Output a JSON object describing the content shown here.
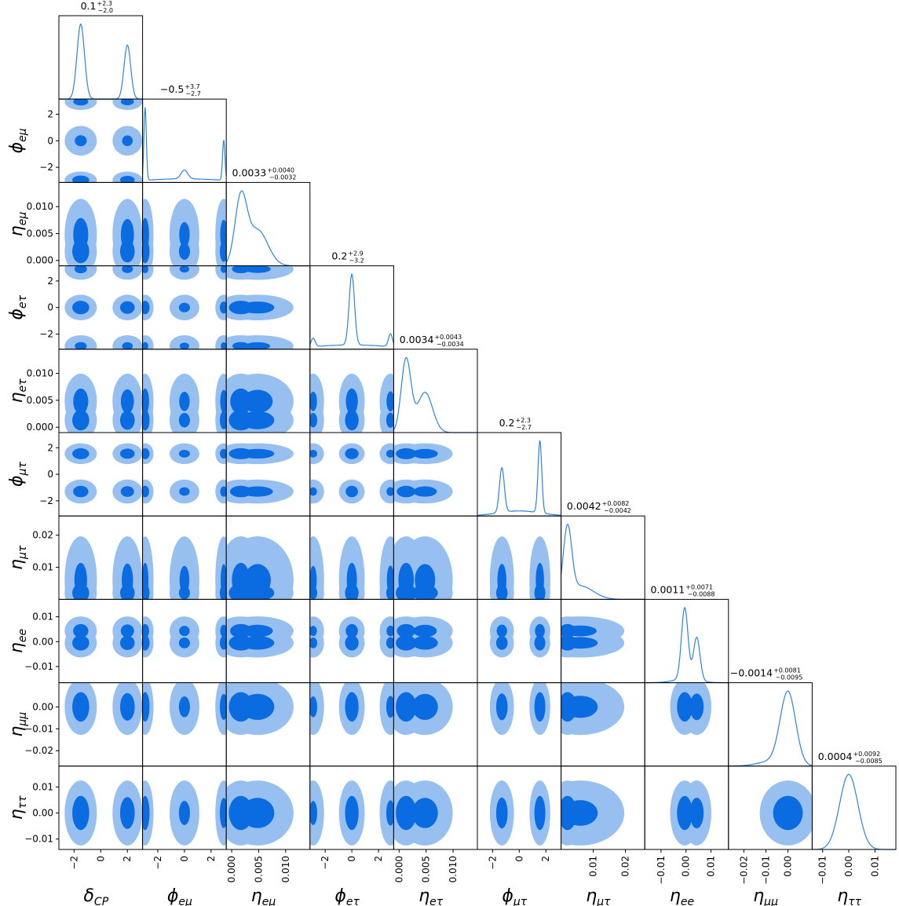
{
  "colors": {
    "inner": "#0a6ce0",
    "outer": "#97c0f0",
    "line": "#2b84e0",
    "axis": "#000000"
  },
  "chart_data": {
    "type": "corner",
    "params": [
      {
        "key": "dCP",
        "label_base": "δ",
        "label_sub": "CP",
        "range": [
          -3.14,
          3.14
        ],
        "ticks": [
          -2,
          0,
          2
        ],
        "tick_labels": [
          "−2",
          "0",
          "2"
        ],
        "summary": {
          "value": "0.1",
          "plus": "+2.3",
          "minus": "−2.0"
        },
        "peaks": [
          {
            "mu": -1.5,
            "s": 0.28,
            "a": 1.0
          },
          {
            "mu": 2.0,
            "s": 0.25,
            "a": 0.72
          }
        ]
      },
      {
        "key": "pem",
        "label_base": "ϕ",
        "label_sub": "eμ",
        "range": [
          -3.14,
          3.14
        ],
        "ticks": [
          -2,
          0,
          2
        ],
        "tick_labels": [
          "−2",
          "0",
          "2"
        ],
        "summary": {
          "value": "−0.5",
          "plus": "+3.7",
          "minus": "−2.7"
        },
        "peaks": [
          {
            "mu": -2.95,
            "s": 0.09,
            "a": 1.0
          },
          {
            "mu": 0.0,
            "s": 0.25,
            "a": 0.12
          },
          {
            "mu": 2.95,
            "s": 0.09,
            "a": 0.55
          },
          {
            "mu": 0.0,
            "s": 3.0,
            "a": 0.05
          }
        ]
      },
      {
        "key": "nem",
        "label_base": "η",
        "label_sub": "eμ",
        "range": [
          -0.001,
          0.0145
        ],
        "ticks": [
          0,
          0.005,
          0.01
        ],
        "tick_labels": [
          "0.000",
          "0.005",
          "0.010"
        ],
        "summary": {
          "value": "0.0033",
          "plus": "+0.0040",
          "minus": "−0.0032"
        },
        "peaks": [
          {
            "mu": 0.0017,
            "s": 0.0011,
            "a": 1.0
          },
          {
            "mu": 0.0048,
            "s": 0.0019,
            "a": 0.55
          }
        ]
      },
      {
        "key": "pet",
        "label_base": "ϕ",
        "label_sub": "eτ",
        "range": [
          -3.14,
          3.14
        ],
        "ticks": [
          -2,
          0,
          2
        ],
        "tick_labels": [
          "−2",
          "0",
          "2"
        ],
        "summary": {
          "value": "0.2",
          "plus": "+2.9",
          "minus": "−3.2"
        },
        "peaks": [
          {
            "mu": 0.0,
            "s": 0.2,
            "a": 1.0
          },
          {
            "mu": -2.9,
            "s": 0.15,
            "a": 0.12
          },
          {
            "mu": 2.9,
            "s": 0.15,
            "a": 0.18
          },
          {
            "mu": 0.0,
            "s": 3.0,
            "a": 0.06
          }
        ]
      },
      {
        "key": "net",
        "label_base": "η",
        "label_sub": "eτ",
        "range": [
          -0.001,
          0.0145
        ],
        "ticks": [
          0,
          0.005,
          0.01
        ],
        "tick_labels": [
          "0.000",
          "0.005",
          "0.010"
        ],
        "summary": {
          "value": "0.0034",
          "plus": "+0.0043",
          "minus": "−0.0034"
        },
        "peaks": [
          {
            "mu": 0.0013,
            "s": 0.0009,
            "a": 1.0
          },
          {
            "mu": 0.0048,
            "s": 0.0014,
            "a": 0.55
          }
        ]
      },
      {
        "key": "pmt",
        "label_base": "ϕ",
        "label_sub": "μτ",
        "range": [
          -3.14,
          3.14
        ],
        "ticks": [
          -2,
          0,
          2
        ],
        "tick_labels": [
          "−2",
          "0",
          "2"
        ],
        "summary": {
          "value": "0.2",
          "plus": "+2.3",
          "minus": "−2.7"
        },
        "peaks": [
          {
            "mu": -1.3,
            "s": 0.18,
            "a": 0.62
          },
          {
            "mu": 1.55,
            "s": 0.14,
            "a": 1.0
          },
          {
            "mu": 0.0,
            "s": 1.6,
            "a": 0.07
          }
        ]
      },
      {
        "key": "nmt",
        "label_base": "η",
        "label_sub": "μτ",
        "range": [
          0,
          0.026
        ],
        "ticks": [
          0.01,
          0.02
        ],
        "tick_labels": [
          "0.01",
          "0.02"
        ],
        "summary": {
          "value": "0.0042",
          "plus": "+0.0082",
          "minus": "−0.0042"
        },
        "peaks": [
          {
            "mu": 0.002,
            "s": 0.0013,
            "a": 1.0
          },
          {
            "mu": 0.006,
            "s": 0.004,
            "a": 0.2
          }
        ]
      },
      {
        "key": "nee",
        "label_base": "η",
        "label_sub": "ee",
        "range": [
          -0.0165,
          0.017
        ],
        "ticks": [
          -0.01,
          0,
          0.01
        ],
        "tick_labels": [
          "−0.01",
          "0.00",
          "0.01"
        ],
        "summary": {
          "value": "0.0011",
          "plus": "+0.0071",
          "minus": "−0.0088"
        },
        "peaks": [
          {
            "mu": -0.0005,
            "s": 0.0013,
            "a": 1.0
          },
          {
            "mu": 0.0043,
            "s": 0.0013,
            "a": 0.6
          },
          {
            "mu": 0.0,
            "s": 0.005,
            "a": 0.05
          }
        ]
      },
      {
        "key": "nmm",
        "label_base": "η",
        "label_sub": "μμ",
        "range": [
          -0.027,
          0.011
        ],
        "ticks": [
          -0.02,
          -0.01,
          0
        ],
        "tick_labels": [
          "−0.02",
          "−0.01",
          "0.00"
        ],
        "summary": {
          "value": "−0.0014",
          "plus": "+0.0081",
          "minus": "−0.0095"
        },
        "peaks": [
          {
            "mu": 0.0,
            "s": 0.0035,
            "a": 1.0
          },
          {
            "mu": -0.008,
            "s": 0.006,
            "a": 0.06
          }
        ]
      },
      {
        "key": "ntt",
        "label_base": "η",
        "label_sub": "ττ",
        "range": [
          -0.014,
          0.018
        ],
        "ticks": [
          -0.01,
          0,
          0.01
        ],
        "tick_labels": [
          "−0.01",
          "0.00",
          "0.01"
        ],
        "summary": {
          "value": "0.0004",
          "plus": "+0.0092",
          "minus": "−0.0085"
        },
        "peaks": [
          {
            "mu": 0.0,
            "s": 0.0035,
            "a": 1.0
          }
        ]
      }
    ],
    "yaxis": [
      {
        "row": 1,
        "ticks": [
          -2,
          0,
          2
        ],
        "tick_labels": [
          "−2",
          "0",
          "2"
        ]
      },
      {
        "row": 2,
        "ticks": [
          0,
          0.005,
          0.01
        ],
        "tick_labels": [
          "0.000",
          "0.005",
          "0.010"
        ]
      },
      {
        "row": 3,
        "ticks": [
          -2,
          0,
          2
        ],
        "tick_labels": [
          "−2",
          "0",
          "2"
        ]
      },
      {
        "row": 4,
        "ticks": [
          0,
          0.005,
          0.01
        ],
        "tick_labels": [
          "0.000",
          "0.005",
          "0.010"
        ]
      },
      {
        "row": 5,
        "ticks": [
          -2,
          0,
          2
        ],
        "tick_labels": [
          "−2",
          "0",
          "2"
        ]
      },
      {
        "row": 6,
        "ticks": [
          0.01,
          0.02
        ],
        "tick_labels": [
          "0.01",
          "0.02"
        ]
      },
      {
        "row": 7,
        "ticks": [
          -0.01,
          0,
          0.01
        ],
        "tick_labels": [
          "−0.01",
          "0.00",
          "0.01"
        ]
      },
      {
        "row": 8,
        "ticks": [
          -0.02,
          -0.01,
          0
        ],
        "tick_labels": [
          "−0.02",
          "−0.01",
          "0.00"
        ]
      },
      {
        "row": 9,
        "ticks": [
          -0.01,
          0,
          0.01
        ],
        "tick_labels": [
          "−0.01",
          "0.00",
          "0.01"
        ]
      }
    ]
  }
}
